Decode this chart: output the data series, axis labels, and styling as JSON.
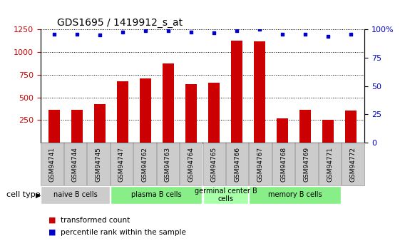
{
  "title": "GDS1695 / 1419912_s_at",
  "categories": [
    "GSM94741",
    "GSM94744",
    "GSM94745",
    "GSM94747",
    "GSM94762",
    "GSM94763",
    "GSM94764",
    "GSM94765",
    "GSM94766",
    "GSM94767",
    "GSM94768",
    "GSM94769",
    "GSM94771",
    "GSM94772"
  ],
  "bar_values": [
    365,
    365,
    430,
    675,
    710,
    875,
    650,
    660,
    1130,
    1120,
    270,
    365,
    250,
    355
  ],
  "dot_values": [
    96,
    96,
    95,
    98,
    99,
    99,
    98,
    97,
    99,
    100,
    96,
    96,
    94,
    96
  ],
  "bar_color": "#cc0000",
  "dot_color": "#0000cc",
  "ylim_left": [
    0,
    1250
  ],
  "ylim_right": [
    0,
    100
  ],
  "yticks_left": [
    250,
    500,
    750,
    1000,
    1250
  ],
  "yticks_right": [
    0,
    25,
    50,
    75,
    100
  ],
  "ytick_labels_right": [
    "0",
    "25",
    "50",
    "75",
    "100%"
  ],
  "cell_groups": [
    {
      "label": "naive B cells",
      "start": 0,
      "end": 2,
      "color": "#cccccc"
    },
    {
      "label": "plasma B cells",
      "start": 3,
      "end": 6,
      "color": "#88ee88"
    },
    {
      "label": "germinal center B\ncells",
      "start": 7,
      "end": 8,
      "color": "#aaffaa"
    },
    {
      "label": "memory B cells",
      "start": 9,
      "end": 12,
      "color": "#88ee88"
    }
  ],
  "legend_bar_label": "transformed count",
  "legend_dot_label": "percentile rank within the sample",
  "cell_type_label": "cell type",
  "tick_box_color": "#cccccc",
  "tick_box_edge_color": "#999999"
}
